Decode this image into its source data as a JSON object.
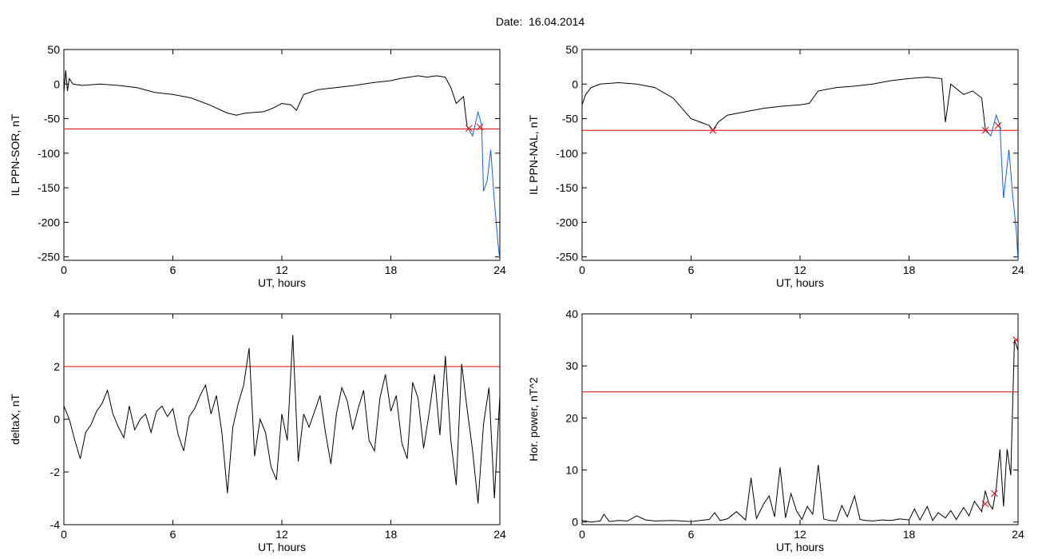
{
  "header": {
    "date_label": "Date:",
    "date_value": "16.04.2014"
  },
  "colors": {
    "trace": "#000000",
    "threshold": "#e00000",
    "blue": "#1060d0",
    "green": "#20a040",
    "marker": "#e00000"
  },
  "chart_data": [
    {
      "type": "line",
      "xlabel": "UT, hours",
      "ylabel": "IL PPN-SOR, nT",
      "xlim": [
        0,
        24
      ],
      "ylim": [
        -255,
        50
      ],
      "xticks": [
        0,
        6,
        12,
        18,
        24
      ],
      "yticks": [
        50,
        0,
        -50,
        -100,
        -150,
        -200,
        -250
      ],
      "threshold": -65,
      "series": [
        {
          "color": "black",
          "x": [
            0,
            0.1,
            0.2,
            0.3,
            0.5,
            1,
            2,
            3,
            4,
            5,
            6,
            7,
            8,
            9,
            9.5,
            10,
            11,
            11.5,
            12,
            12.5,
            12.8,
            13.2,
            14,
            15,
            16,
            17,
            18,
            18.5,
            19,
            19.5,
            20,
            20.5,
            21,
            21.3,
            21.6,
            22,
            22.2
          ],
          "y": [
            -12,
            20,
            -10,
            8,
            0,
            -2,
            0,
            -2,
            -5,
            -12,
            -15,
            -20,
            -30,
            -42,
            -45,
            -42,
            -40,
            -35,
            -28,
            -30,
            -38,
            -15,
            -8,
            -5,
            -2,
            2,
            5,
            8,
            10,
            12,
            10,
            12,
            10,
            -5,
            -28,
            -18,
            -62
          ]
        },
        {
          "color": "blue",
          "x": [
            22.2,
            22.5,
            22.8,
            23,
            23.1,
            23.3,
            23.5,
            23.7,
            23.8,
            23.9,
            24
          ],
          "y": [
            -62,
            -75,
            -40,
            -60,
            -155,
            -140,
            -95,
            -170,
            -200,
            -230,
            -255
          ]
        }
      ],
      "markers": [
        {
          "x": 22.3,
          "y": -64
        },
        {
          "x": 22.9,
          "y": -62
        }
      ]
    },
    {
      "type": "line",
      "xlabel": "UT, hours",
      "ylabel": "IL PPN-NAL, nT",
      "xlim": [
        0,
        24
      ],
      "ylim": [
        -255,
        50
      ],
      "xticks": [
        0,
        6,
        12,
        18,
        24
      ],
      "yticks": [
        50,
        0,
        -50,
        -100,
        -150,
        -200,
        -250
      ],
      "threshold": -67,
      "series": [
        {
          "color": "black",
          "x": [
            0,
            0.2,
            0.5,
            1,
            2,
            3,
            4,
            5,
            5.5,
            6,
            6.5,
            7,
            7.2,
            7.5,
            8,
            9,
            10,
            11,
            12,
            12.5,
            13,
            14,
            15,
            16,
            17,
            18,
            19,
            19.8,
            20,
            20.3,
            21,
            21.5,
            22,
            22.2
          ],
          "y": [
            -30,
            -15,
            -5,
            0,
            2,
            0,
            -5,
            -20,
            -35,
            -50,
            -55,
            -60,
            -67,
            -55,
            -45,
            -40,
            -35,
            -32,
            -30,
            -28,
            -10,
            -5,
            -3,
            0,
            5,
            8,
            10,
            8,
            -55,
            0,
            -15,
            -10,
            -20,
            -65
          ]
        },
        {
          "color": "blue",
          "x": [
            22.2,
            22.5,
            22.8,
            23,
            23.2,
            23.5,
            23.7,
            23.9,
            24
          ],
          "y": [
            -65,
            -75,
            -45,
            -60,
            -165,
            -95,
            -160,
            -210,
            -255
          ]
        }
      ],
      "markers": [
        {
          "x": 7.2,
          "y": -67
        },
        {
          "x": 22.2,
          "y": -67
        },
        {
          "x": 22.9,
          "y": -60
        }
      ]
    },
    {
      "type": "line",
      "xlabel": "UT, hours",
      "ylabel": "deltaX, nT",
      "xlim": [
        0,
        24
      ],
      "ylim": [
        -4,
        4
      ],
      "xticks": [
        0,
        6,
        12,
        18,
        24
      ],
      "yticks": [
        4,
        2,
        0,
        -2,
        -4
      ],
      "threshold": 2,
      "series": [
        {
          "color": "black",
          "x": [
            0,
            0.3,
            0.6,
            0.9,
            1.2,
            1.5,
            1.8,
            2.1,
            2.4,
            2.7,
            3,
            3.3,
            3.6,
            3.9,
            4.2,
            4.5,
            4.8,
            5.1,
            5.4,
            5.7,
            6,
            6.3,
            6.6,
            6.9,
            7.2,
            7.5,
            7.8,
            8.1,
            8.4,
            8.7,
            9,
            9.3,
            9.6,
            9.9,
            10.2,
            10.5,
            10.8,
            11.1,
            11.4,
            11.7,
            12,
            12.3,
            12.6,
            12.9,
            13.2,
            13.5,
            13.8,
            14.1,
            14.4,
            14.7,
            15,
            15.3,
            15.6,
            15.9,
            16.2,
            16.5,
            16.8,
            17.1,
            17.4,
            17.7,
            18,
            18.3,
            18.6,
            18.9,
            19.2,
            19.5,
            19.8,
            20.1,
            20.4,
            20.7,
            21,
            21.3,
            21.6,
            21.9,
            22.2,
            22.5,
            22.8,
            23.1,
            23.4,
            23.7,
            24
          ],
          "y": [
            0.5,
            0,
            -0.8,
            -1.5,
            -0.5,
            -0.2,
            0.3,
            0.6,
            1.1,
            0.2,
            -0.3,
            -0.7,
            0.5,
            -0.4,
            0,
            0.2,
            -0.5,
            0.3,
            0.5,
            0.1,
            0.4,
            -0.6,
            -1.2,
            0.1,
            0.4,
            0.9,
            1.3,
            0.2,
            0.9,
            -0.5,
            -2.8,
            -0.3,
            0.6,
            1.3,
            2.7,
            -1.4,
            0,
            -0.5,
            -1.8,
            -2.3,
            0.2,
            -0.8,
            3.2,
            -1.6,
            0.2,
            -0.3,
            0.3,
            0.9,
            -0.5,
            -1.7,
            0.2,
            1.2,
            0.7,
            -0.4,
            0.4,
            1.1,
            -0.8,
            -1.2,
            0.8,
            1.7,
            0.3,
            0.9,
            -0.9,
            -1.5,
            1.4,
            0.8,
            -1.1,
            0.2,
            1.7,
            -0.6,
            2.4,
            -0.8,
            -2.5,
            2.1,
            0.4,
            -1.2,
            -3.2,
            -0.2,
            1.2,
            -3,
            0.9
          ]
        }
      ],
      "markers": []
    },
    {
      "type": "line",
      "xlabel": "UT, hours",
      "ylabel": "Hor. power, nT^2",
      "xlim": [
        0,
        24
      ],
      "ylim": [
        -0.5,
        40
      ],
      "xticks": [
        0,
        6,
        12,
        18,
        24
      ],
      "yticks": [
        40,
        30,
        20,
        10,
        0
      ],
      "threshold": 25,
      "series": [
        {
          "color": "black",
          "x": [
            0,
            0.5,
            1,
            1.2,
            1.5,
            2,
            2.5,
            3,
            3.5,
            4,
            5,
            6,
            6.5,
            7,
            7.3,
            7.6,
            8,
            8.5,
            9,
            9.3,
            9.6,
            10,
            10.3,
            10.6,
            10.9,
            11.2,
            11.5,
            11.8,
            12.1,
            12.4,
            12.7,
            13,
            13.3,
            13.6,
            14,
            14.3,
            14.6,
            15,
            15.3,
            15.6,
            16,
            16.5,
            17,
            17.5,
            18,
            18.3,
            18.6,
            19,
            19.3,
            19.6,
            20,
            20.3,
            20.6,
            21,
            21.3,
            21.6,
            22,
            22.2,
            22.4,
            22.6,
            22.8,
            23,
            23.2,
            23.4,
            23.6,
            23.8,
            24
          ],
          "y": [
            0.3,
            0,
            0.2,
            1.5,
            0.1,
            0.3,
            0.2,
            1.2,
            0.4,
            0.2,
            0.3,
            0.1,
            0.3,
            0.5,
            1.8,
            0.3,
            0.6,
            2,
            0.4,
            8.5,
            0.7,
            3.5,
            5,
            1,
            10.5,
            0.8,
            5.5,
            2.2,
            0.5,
            3,
            1.5,
            11,
            0.6,
            0.3,
            0.2,
            3.2,
            1,
            5,
            0.5,
            0.3,
            0.2,
            0.4,
            0.3,
            0.6,
            0.4,
            2.5,
            0.4,
            3,
            0.3,
            1.8,
            0.8,
            2.2,
            0.5,
            2.8,
            1.2,
            4,
            2,
            6,
            3.5,
            2.5,
            6.5,
            14,
            3,
            14,
            9,
            35,
            33
          ]
        }
      ],
      "markers": [
        {
          "x": 22.2,
          "y": 3.5
        },
        {
          "x": 22.7,
          "y": 5.5
        },
        {
          "x": 23.9,
          "y": 35
        }
      ]
    }
  ]
}
